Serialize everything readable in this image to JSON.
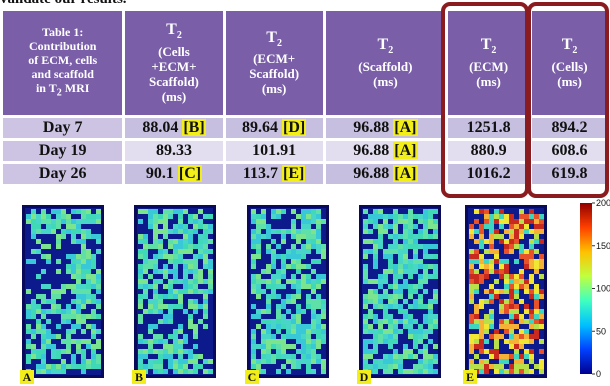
{
  "intro_text": "validate our results.",
  "table": {
    "header": [
      {
        "lines": [
          {
            "text": "Table 1:"
          },
          {
            "text": "Contribution"
          },
          {
            "text": "of ECM, cells"
          },
          {
            "text": "and scaffold"
          },
          {
            "text": "in T",
            "sub": "2",
            "after": " MRI"
          }
        ]
      },
      {
        "lines": [
          {
            "text": "T",
            "sub": "2"
          },
          {
            "text": "(Cells"
          },
          {
            "text": "+ECM+"
          },
          {
            "text": "Scaffold)"
          },
          {
            "text": "(ms)"
          }
        ]
      },
      {
        "lines": [
          {
            "text": "T",
            "sub": "2"
          },
          {
            "text": "(ECM+"
          },
          {
            "text": "Scaffold)"
          },
          {
            "text": "(ms)"
          }
        ]
      },
      {
        "lines": [
          {
            "text": "T",
            "sub": "2"
          },
          {
            "text": "(Scaffold)"
          },
          {
            "text": "(ms)"
          }
        ]
      },
      {
        "lines": [
          {
            "text": "T",
            "sub": "2"
          },
          {
            "text": "(ECM)"
          },
          {
            "text": "(ms)"
          }
        ]
      },
      {
        "lines": [
          {
            "text": "T",
            "sub": "2"
          },
          {
            "text": "(Cells)"
          },
          {
            "text": "(ms)"
          }
        ]
      }
    ],
    "rows": [
      [
        {
          "value": "Day 7"
        },
        {
          "value": 88.04,
          "tag": "[B]"
        },
        {
          "value": 89.64,
          "tag": "[D]"
        },
        {
          "value": 96.88,
          "tag": "[A]"
        },
        {
          "value": 1251.8
        },
        {
          "value": 894.2
        }
      ],
      [
        {
          "value": "Day 19"
        },
        {
          "value": 89.33
        },
        {
          "value": 101.91
        },
        {
          "value": 96.88,
          "tag": "[A]"
        },
        {
          "value": 880.9
        },
        {
          "value": 608.6
        }
      ],
      [
        {
          "value": "Day 26"
        },
        {
          "value": 90.1,
          "tag": "[C]"
        },
        {
          "value": 113.7,
          "tag": "[E]"
        },
        {
          "value": 96.88,
          "tag": "[A]"
        },
        {
          "value": 1016.2
        },
        {
          "value": 619.8
        }
      ]
    ]
  },
  "panels": [
    "A",
    "B",
    "C",
    "D",
    "E"
  ],
  "colorbar_ticks": [
    200,
    150,
    100,
    50,
    0
  ]
}
